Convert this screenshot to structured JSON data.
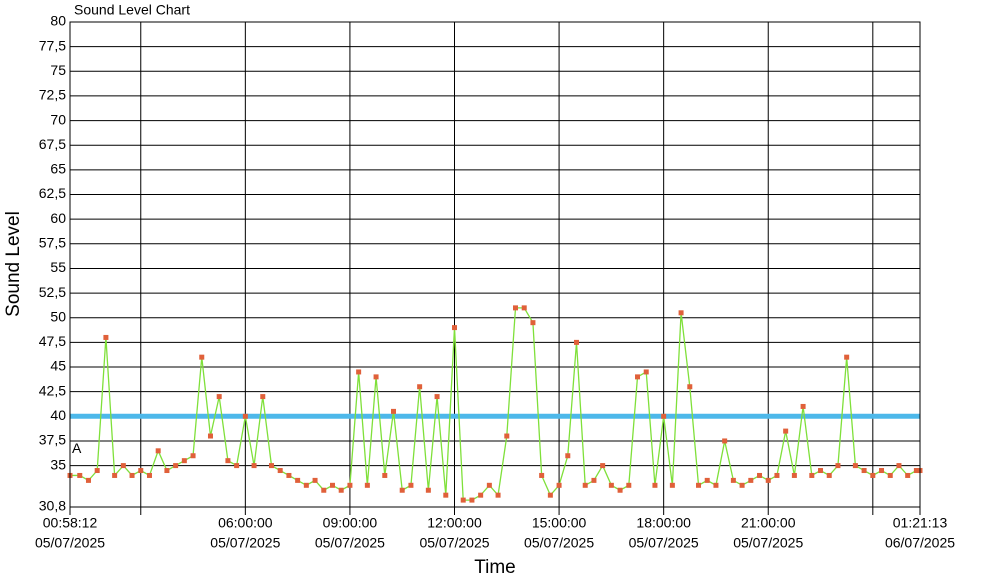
{
  "chart_data": {
    "type": "line",
    "title": "Sound Level Chart",
    "x_label": "Time",
    "y_label": "Sound Level",
    "annotations": [
      {
        "text": "A"
      }
    ],
    "threshold": {
      "value": 40,
      "color": "#4db8ea"
    },
    "grid": true,
    "xlim": [
      "2025-07-05T00:58:12",
      "2025-07-06T01:21:13"
    ],
    "xticks": [
      {
        "value": "2025-07-05T00:58:12",
        "label": [
          "00:58:12",
          "05/07/2025"
        ]
      },
      {
        "value": "2025-07-05T03:00:00"
      },
      {
        "value": "2025-07-05T06:00:00",
        "label": [
          "06:00:00",
          "05/07/2025"
        ]
      },
      {
        "value": "2025-07-05T09:00:00",
        "label": [
          "09:00:00",
          "05/07/2025"
        ]
      },
      {
        "value": "2025-07-05T12:00:00",
        "label": [
          "12:00:00",
          "05/07/2025"
        ]
      },
      {
        "value": "2025-07-05T15:00:00",
        "label": [
          "15:00:00",
          "05/07/2025"
        ]
      },
      {
        "value": "2025-07-05T18:00:00",
        "label": [
          "18:00:00",
          "05/07/2025"
        ]
      },
      {
        "value": "2025-07-05T21:00:00",
        "label": [
          "21:00:00",
          "05/07/2025"
        ]
      },
      {
        "value": "2025-07-06T00:00:00"
      },
      {
        "value": "2025-07-06T01:21:13",
        "label": [
          "01:21:13",
          "06/07/2025"
        ]
      }
    ],
    "ylim": [
      30.8,
      80
    ],
    "yticks": [
      {
        "value": 30.8,
        "label": "30,8"
      },
      35,
      {
        "value": 37.5,
        "label": "37,5"
      },
      40,
      {
        "value": 42.5,
        "label": "42,5"
      },
      45,
      {
        "value": 47.5,
        "label": "47,5"
      },
      50,
      {
        "value": 52.5,
        "label": "52,5"
      },
      55,
      {
        "value": 57.5,
        "label": "57,5"
      },
      60,
      {
        "value": 62.5,
        "label": "62,5"
      },
      65,
      {
        "value": 67.5,
        "label": "67,5"
      },
      70,
      {
        "value": 72.5,
        "label": "72,5"
      },
      75,
      {
        "value": 77.5,
        "label": "77,5"
      },
      80
    ],
    "x": [
      "2025-07-05T00:58:12",
      "2025-07-05T01:15:00",
      "2025-07-05T01:30:00",
      "2025-07-05T01:45:00",
      "2025-07-05T02:00:00",
      "2025-07-05T02:15:00",
      "2025-07-05T02:30:00",
      "2025-07-05T02:45:00",
      "2025-07-05T03:00:00",
      "2025-07-05T03:15:00",
      "2025-07-05T03:30:00",
      "2025-07-05T03:45:00",
      "2025-07-05T04:00:00",
      "2025-07-05T04:15:00",
      "2025-07-05T04:30:00",
      "2025-07-05T04:45:00",
      "2025-07-05T05:00:00",
      "2025-07-05T05:15:00",
      "2025-07-05T05:30:00",
      "2025-07-05T05:45:00",
      "2025-07-05T06:00:00",
      "2025-07-05T06:15:00",
      "2025-07-05T06:30:00",
      "2025-07-05T06:45:00",
      "2025-07-05T07:00:00",
      "2025-07-05T07:15:00",
      "2025-07-05T07:30:00",
      "2025-07-05T07:45:00",
      "2025-07-05T08:00:00",
      "2025-07-05T08:15:00",
      "2025-07-05T08:30:00",
      "2025-07-05T08:45:00",
      "2025-07-05T09:00:00",
      "2025-07-05T09:15:00",
      "2025-07-05T09:30:00",
      "2025-07-05T09:45:00",
      "2025-07-05T10:00:00",
      "2025-07-05T10:15:00",
      "2025-07-05T10:30:00",
      "2025-07-05T10:45:00",
      "2025-07-05T11:00:00",
      "2025-07-05T11:15:00",
      "2025-07-05T11:30:00",
      "2025-07-05T11:45:00",
      "2025-07-05T12:00:00",
      "2025-07-05T12:15:00",
      "2025-07-05T12:30:00",
      "2025-07-05T12:45:00",
      "2025-07-05T13:00:00",
      "2025-07-05T13:15:00",
      "2025-07-05T13:30:00",
      "2025-07-05T13:45:00",
      "2025-07-05T14:00:00",
      "2025-07-05T14:15:00",
      "2025-07-05T14:30:00",
      "2025-07-05T14:45:00",
      "2025-07-05T15:00:00",
      "2025-07-05T15:15:00",
      "2025-07-05T15:30:00",
      "2025-07-05T15:45:00",
      "2025-07-05T16:00:00",
      "2025-07-05T16:15:00",
      "2025-07-05T16:30:00",
      "2025-07-05T16:45:00",
      "2025-07-05T17:00:00",
      "2025-07-05T17:15:00",
      "2025-07-05T17:30:00",
      "2025-07-05T17:45:00",
      "2025-07-05T18:00:00",
      "2025-07-05T18:15:00",
      "2025-07-05T18:30:00",
      "2025-07-05T18:45:00",
      "2025-07-05T19:00:00",
      "2025-07-05T19:15:00",
      "2025-07-05T19:30:00",
      "2025-07-05T19:45:00",
      "2025-07-05T20:00:00",
      "2025-07-05T20:15:00",
      "2025-07-05T20:30:00",
      "2025-07-05T20:45:00",
      "2025-07-05T21:00:00",
      "2025-07-05T21:15:00",
      "2025-07-05T21:30:00",
      "2025-07-05T21:45:00",
      "2025-07-05T22:00:00",
      "2025-07-05T22:15:00",
      "2025-07-05T22:30:00",
      "2025-07-05T22:45:00",
      "2025-07-05T23:00:00",
      "2025-07-05T23:15:00",
      "2025-07-05T23:30:00",
      "2025-07-05T23:45:00",
      "2025-07-06T00:00:00",
      "2025-07-06T00:15:00",
      "2025-07-06T00:30:00",
      "2025-07-06T00:45:00",
      "2025-07-06T01:00:00",
      "2025-07-06T01:15:00",
      "2025-07-06T01:21:13"
    ],
    "series": [
      {
        "color": "#7fe03a",
        "marker_color": "#e0603a",
        "values": [
          34,
          34,
          33.5,
          34.5,
          48,
          34,
          35,
          34,
          34.5,
          34,
          36.5,
          34.5,
          35,
          35.5,
          36,
          46,
          38,
          42,
          35.5,
          35,
          40,
          35,
          42,
          35,
          34.5,
          34,
          33.5,
          33,
          33.5,
          32.5,
          33,
          32.5,
          33,
          44.5,
          33,
          44,
          34,
          40.5,
          32.5,
          33,
          43,
          32.5,
          42,
          32,
          49,
          31.5,
          31.5,
          32,
          33,
          32,
          38,
          51,
          51,
          49.5,
          34,
          32,
          33,
          36,
          47.5,
          33,
          33.5,
          35,
          33,
          32.5,
          33,
          44,
          44.5,
          33,
          40,
          33,
          50.5,
          43,
          33,
          33.5,
          33,
          37.5,
          33.5,
          33,
          33.5,
          34,
          33.5,
          34,
          38.5,
          34,
          41,
          34,
          34.5,
          34,
          35,
          46,
          35,
          34.5,
          34,
          34.5,
          34,
          35,
          34,
          34.5,
          34.5
        ]
      }
    ]
  }
}
